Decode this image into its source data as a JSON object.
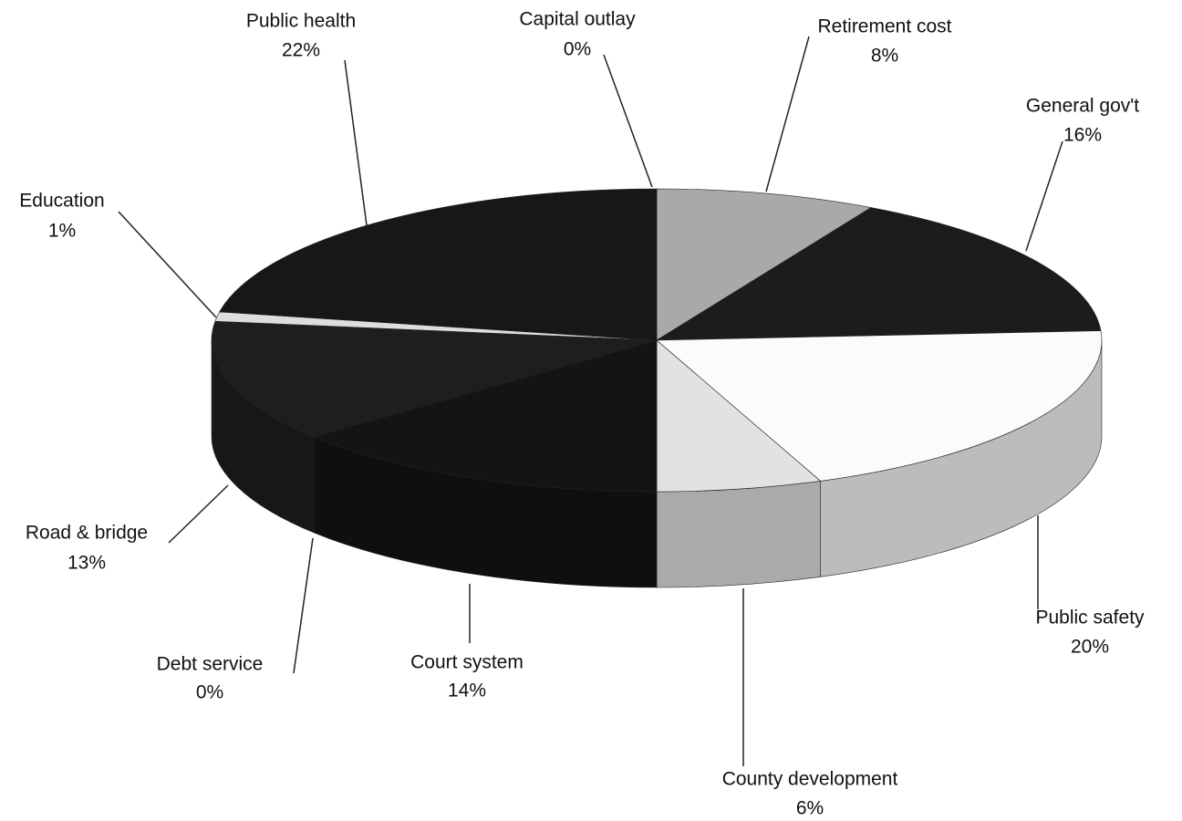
{
  "chart_data": {
    "type": "pie",
    "categories": [
      "Capital outlay",
      "Retirement cost",
      "General gov't",
      "Public safety",
      "County development",
      "Court system",
      "Debt service",
      "Road & bridge",
      "Education",
      "Public health"
    ],
    "values": [
      0,
      8,
      16,
      20,
      6,
      14,
      0,
      13,
      1,
      22
    ],
    "value_labels": [
      "0%",
      "8%",
      "16%",
      "20%",
      "6%",
      "14%",
      "0%",
      "13%",
      "1%",
      "22%"
    ],
    "colors": [
      "#888888",
      "#a9a9a9",
      "#1c1c1c",
      "#fbfbfb",
      "#e2e2e2",
      "#141414",
      "#d8d8d8",
      "#1e1e1e",
      "#dddddd",
      "#171717"
    ]
  }
}
